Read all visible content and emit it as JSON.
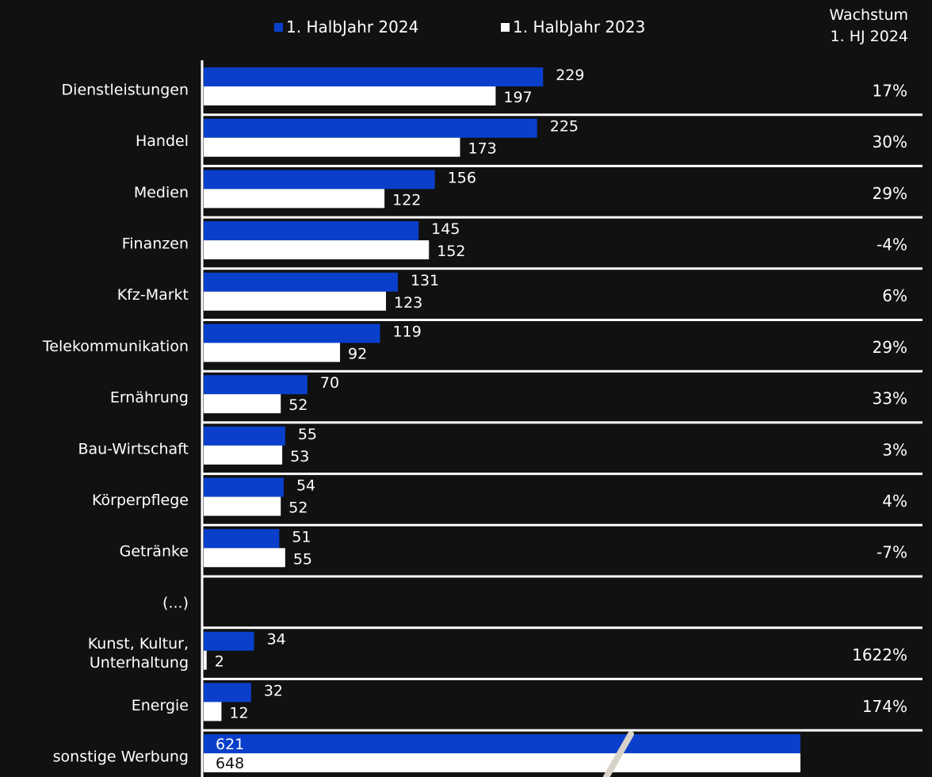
{
  "chart_data": {
    "type": "bar",
    "orientation": "horizontal",
    "colors": {
      "background": "#111111",
      "series_2024": "#0a3fcb",
      "series_2023": "#ffffff",
      "text": "#ffffff"
    },
    "legend": {
      "placement": "top"
    },
    "growth_header": [
      "Wachstum",
      "1. HJ 2024"
    ],
    "series": [
      {
        "name": "1. HalbJahr 2024",
        "values": [
          229,
          225,
          156,
          145,
          131,
          119,
          70,
          55,
          54,
          51,
          null,
          34,
          32,
          621
        ]
      },
      {
        "name": "1. HalbJahr 2023",
        "values": [
          197,
          173,
          122,
          152,
          123,
          92,
          52,
          53,
          52,
          55,
          null,
          2,
          12,
          648
        ]
      }
    ],
    "categories": [
      [
        "Dienstleistungen"
      ],
      [
        "Handel"
      ],
      [
        "Medien"
      ],
      [
        "Finanzen"
      ],
      [
        "Kfz-Markt"
      ],
      [
        "Telekommunikation"
      ],
      [
        "Ernährung"
      ],
      [
        "Bau-Wirtschaft"
      ],
      [
        "Körperpflege"
      ],
      [
        "Getränke"
      ],
      [
        "(...)"
      ],
      [
        "Kunst, Kultur,",
        "Unterhaltung"
      ],
      [
        "Energie"
      ],
      [
        "sonstige Werbung"
      ]
    ],
    "value_labels_2024": [
      "229",
      "225",
      "156",
      "145",
      "131",
      "119",
      "70",
      "55",
      "54",
      "51",
      "",
      "34",
      "32",
      "621"
    ],
    "value_labels_2023": [
      "197",
      "173",
      "122",
      "152",
      "123",
      "92",
      "52",
      "53",
      "52",
      "55",
      "",
      "2",
      "12",
      "648"
    ],
    "growth": [
      "17%",
      "30%",
      "29%",
      "-4%",
      "6%",
      "29%",
      "33%",
      "3%",
      "4%",
      "-7%",
      "",
      "1622%",
      "174%",
      ""
    ]
  }
}
